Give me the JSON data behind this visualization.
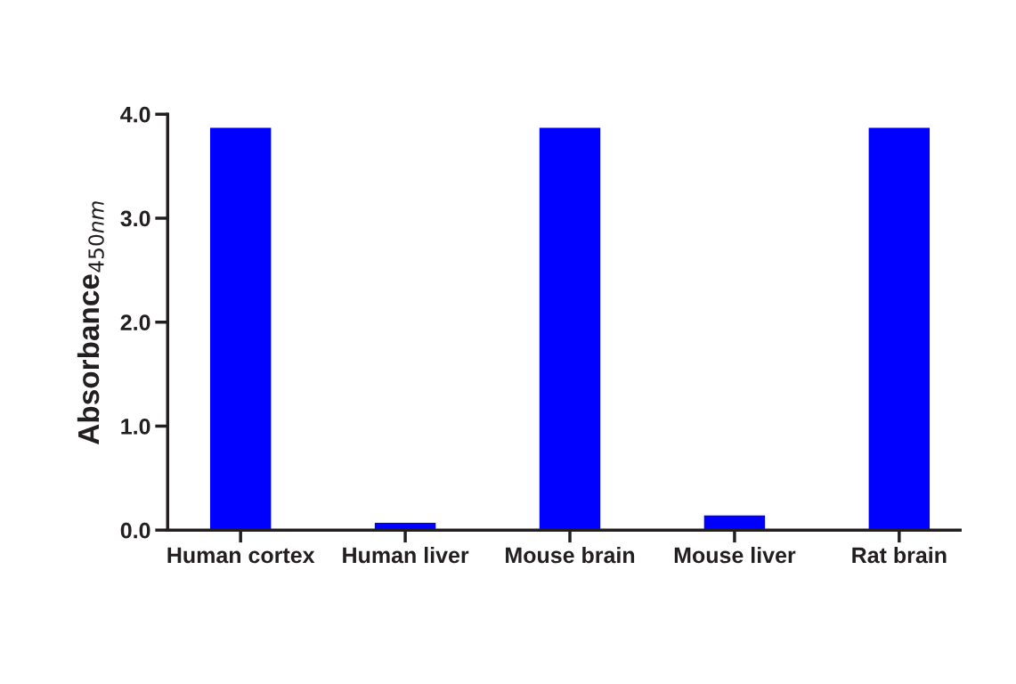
{
  "chart_data": {
    "type": "bar",
    "ylabel": "Absorbance$_{450nm}$",
    "categories": [
      "Human cortex",
      "Human liver",
      "Mouse brain",
      "Mouse liver",
      "Rat brain"
    ],
    "values": [
      3.87,
      0.07,
      3.87,
      0.14,
      3.87
    ],
    "color": "#0000ff",
    "ylim": [
      0,
      4
    ],
    "yticks": [
      {
        "value": 0,
        "label": "0.0"
      },
      {
        "value": 1,
        "label": "1.0"
      },
      {
        "value": 2,
        "label": "2.0"
      },
      {
        "value": 3,
        "label": "3.0"
      },
      {
        "value": 4,
        "label": "4.0"
      }
    ],
    "grid": false
  }
}
